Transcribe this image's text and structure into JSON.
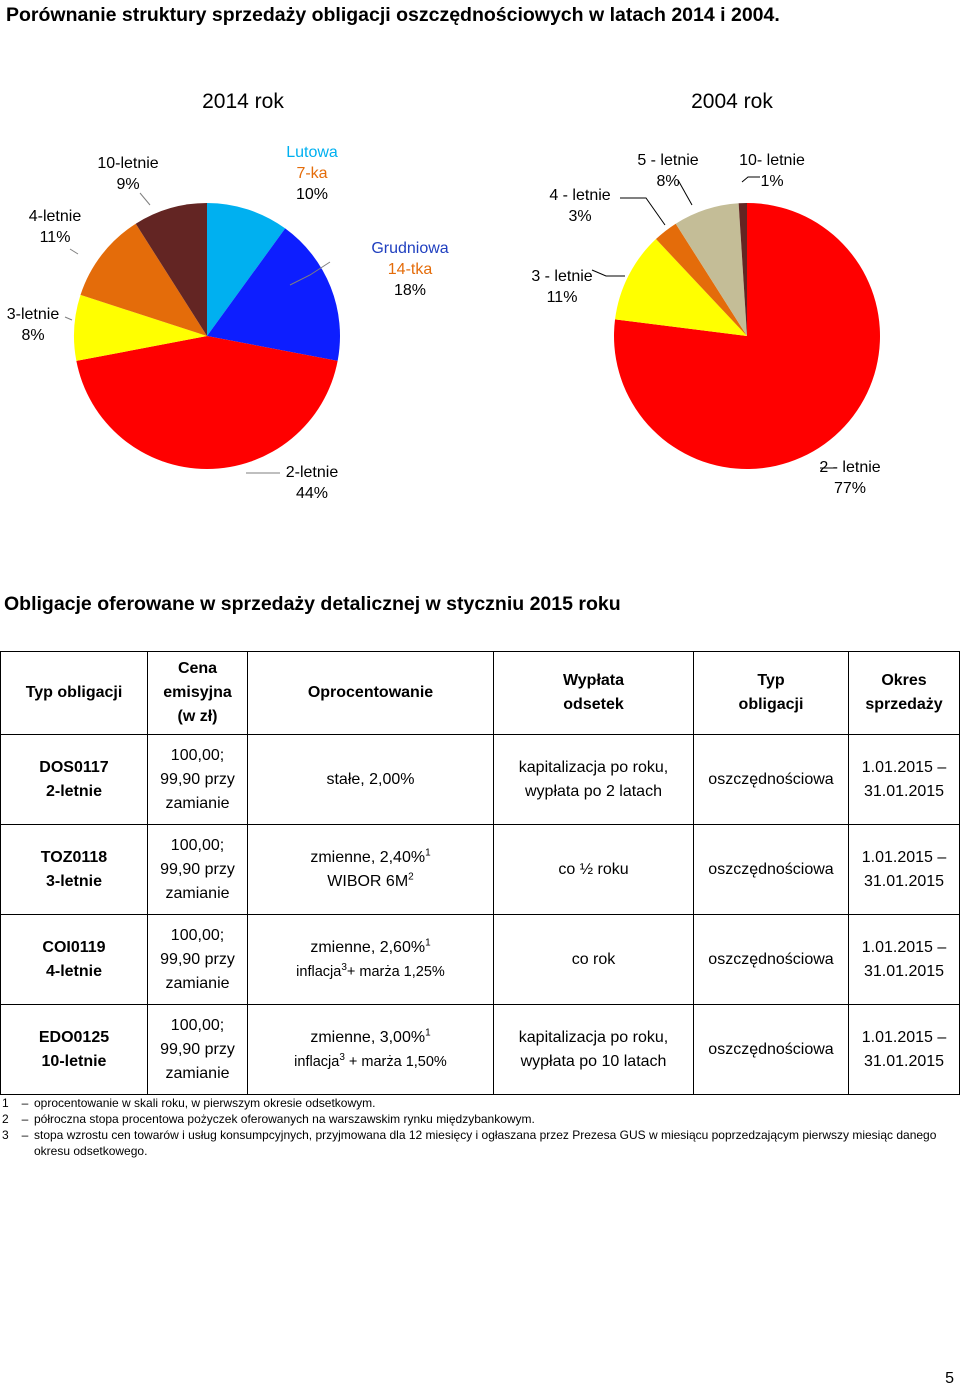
{
  "page_title": "Porównanie struktury sprzedaży obligacji oszczędnościowych w latach 2014 i 2004.",
  "chart_data": [
    {
      "type": "pie",
      "title": "2014 rok",
      "slices": [
        {
          "label": "Lutowa 7-ka",
          "label_parts": [
            "Lutowa",
            "7-ka"
          ],
          "value": 10,
          "pct": "10%",
          "color": "#00b0f0",
          "label_color": "#00b0f0"
        },
        {
          "label": "Grudniowa 14-tka",
          "label_parts": [
            "Grudniowa",
            "14-tka"
          ],
          "value": 18,
          "pct": "18%",
          "color": "#0d1eff",
          "label_color": "#1f3fbf"
        },
        {
          "label": "2-letnie",
          "value": 44,
          "pct": "44%",
          "color": "#ff0000"
        },
        {
          "label": "3-letnie",
          "value": 8,
          "pct": "8%",
          "color": "#ffff00"
        },
        {
          "label": "4-letnie",
          "value": 11,
          "pct": "11%",
          "color": "#e46c0a"
        },
        {
          "label": "10-letnie",
          "value": 9,
          "pct": "9%",
          "color": "#632523"
        }
      ]
    },
    {
      "type": "pie",
      "title": "2004 rok",
      "slices": [
        {
          "label": "2 - letnie",
          "value": 77,
          "pct": "77%",
          "color": "#ff0000"
        },
        {
          "label": "3 - letnie",
          "value": 11,
          "pct": "11%",
          "color": "#ffff00"
        },
        {
          "label": "4 - letnie",
          "value": 3,
          "pct": "3%",
          "color": "#e46c0a"
        },
        {
          "label": "5 - letnie",
          "value": 8,
          "pct": "8%",
          "color": "#c4bd97"
        },
        {
          "label": "10- letnie",
          "value": 1,
          "pct": "1%",
          "color": "#632523"
        }
      ]
    }
  ],
  "table": {
    "title": "Obligacje oferowane w sprzedaży detalicznej w styczniu 2015 roku",
    "headers": [
      "Typ obligacji",
      "Cena\nemisyjna\n(w zł)",
      "Oprocentowanie",
      "Wypłata\nodsetek",
      "Typ\nobligacji",
      "Okres\nsprzedaży"
    ],
    "rows": [
      {
        "name": "DOS0117\n2-letnie",
        "price": "100,00;\n99,90 przy\nzamianie",
        "rate_line1": "stałe, 2,00%",
        "rate_sup1": "",
        "rate_line2": "",
        "rate_sup2": "",
        "rate_line2_tail": "",
        "payout": "kapitalizacja po roku,\nwypłata po 2 latach",
        "type": "oszczędnościowa",
        "period": "1.01.2015 –\n31.01.2015"
      },
      {
        "name": "TOZ0118\n3-letnie",
        "price": "100,00;\n99,90 przy\nzamianie",
        "rate_line1": "zmienne, 2,40%",
        "rate_sup1": "1",
        "rate_line2": "WIBOR 6M",
        "rate_sup2": "2",
        "rate_line2_tail": "",
        "payout": "co ½ roku",
        "type": "oszczędnościowa",
        "period": "1.01.2015 –\n31.01.2015"
      },
      {
        "name": "COI0119\n4-letnie",
        "price": "100,00;\n99,90 przy\nzamianie",
        "rate_line1": "zmienne, 2,60%",
        "rate_sup1": "1",
        "rate_line2": "inflacja",
        "rate_sup2": "3",
        "rate_line2_tail": "+ marża 1,25%",
        "payout": "co rok",
        "type": "oszczędnościowa",
        "period": "1.01.2015 –\n31.01.2015"
      },
      {
        "name": "EDO0125\n10-letnie",
        "price": "100,00;\n99,90 przy\nzamianie",
        "rate_line1": "zmienne, 3,00%",
        "rate_sup1": "1",
        "rate_line2": "inflacja",
        "rate_sup2": "3",
        "rate_line2_tail": " + marża 1,50%",
        "payout": "kapitalizacja po roku,\nwypłata po 10 latach",
        "type": "oszczędnościowa",
        "period": "1.01.2015 –\n31.01.2015"
      }
    ]
  },
  "footnotes": [
    {
      "num": "1",
      "text": "oprocentowanie w skali roku, w pierwszym okresie odsetkowym."
    },
    {
      "num": "2",
      "text": "półroczna stopa procentowa pożyczek oferowanych na warszawskim rynku międzybankowym."
    },
    {
      "num": "3",
      "text": "stopa wzrostu cen towarów i usług konsumpcyjnych, przyjmowana dla 12 miesięcy i ogłaszana przez Prezesa GUS w miesiącu poprzedzającym pierwszy miesiąc danego okresu odsetkowego."
    }
  ],
  "page_number": "5"
}
